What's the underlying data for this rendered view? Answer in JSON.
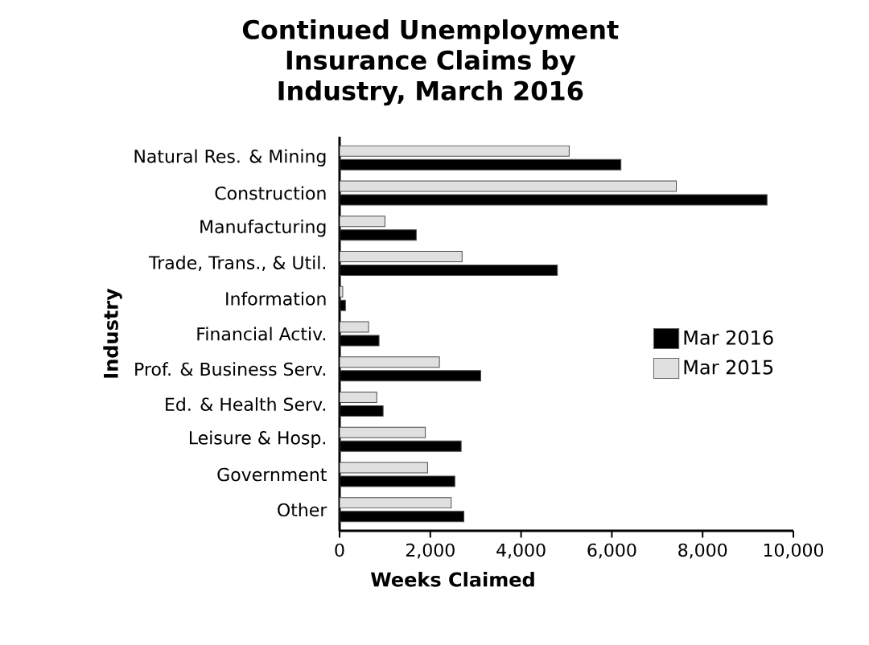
{
  "chart_data": {
    "type": "bar",
    "orientation": "horizontal",
    "title": "Continued Unemployment Insurance Claims by Industry, March 2016",
    "xlabel": "Weeks Claimed",
    "ylabel": "Industry",
    "categories": [
      "Natural Res. & Mining",
      "Construction",
      "Manufacturing",
      "Trade, Trans., & Util.",
      "Information",
      "Financial Activ.",
      "Prof. & Business Serv.",
      "Ed. & Health Serv.",
      "Leisure & Hosp.",
      "Government",
      "Other"
    ],
    "series": [
      {
        "name": "Mar 2016",
        "color": "#000000",
        "values": [
          6200,
          9420,
          1690,
          4800,
          130,
          870,
          3110,
          960,
          2680,
          2540,
          2740
        ]
      },
      {
        "name": "Mar 2015",
        "color": "#e0e0e0",
        "values": [
          5060,
          7420,
          1000,
          2700,
          70,
          640,
          2200,
          820,
          1890,
          1940,
          2460
        ]
      }
    ],
    "xlim": [
      0,
      10000
    ],
    "xticks": [
      {
        "value": 0,
        "label": "0"
      },
      {
        "value": 2000,
        "label": "2,000"
      },
      {
        "value": 4000,
        "label": "4,000"
      },
      {
        "value": 6000,
        "label": "6,000"
      },
      {
        "value": 8000,
        "label": "8,000"
      },
      {
        "value": 10000,
        "label": "10,000"
      }
    ],
    "legend": "right",
    "grid": false
  }
}
